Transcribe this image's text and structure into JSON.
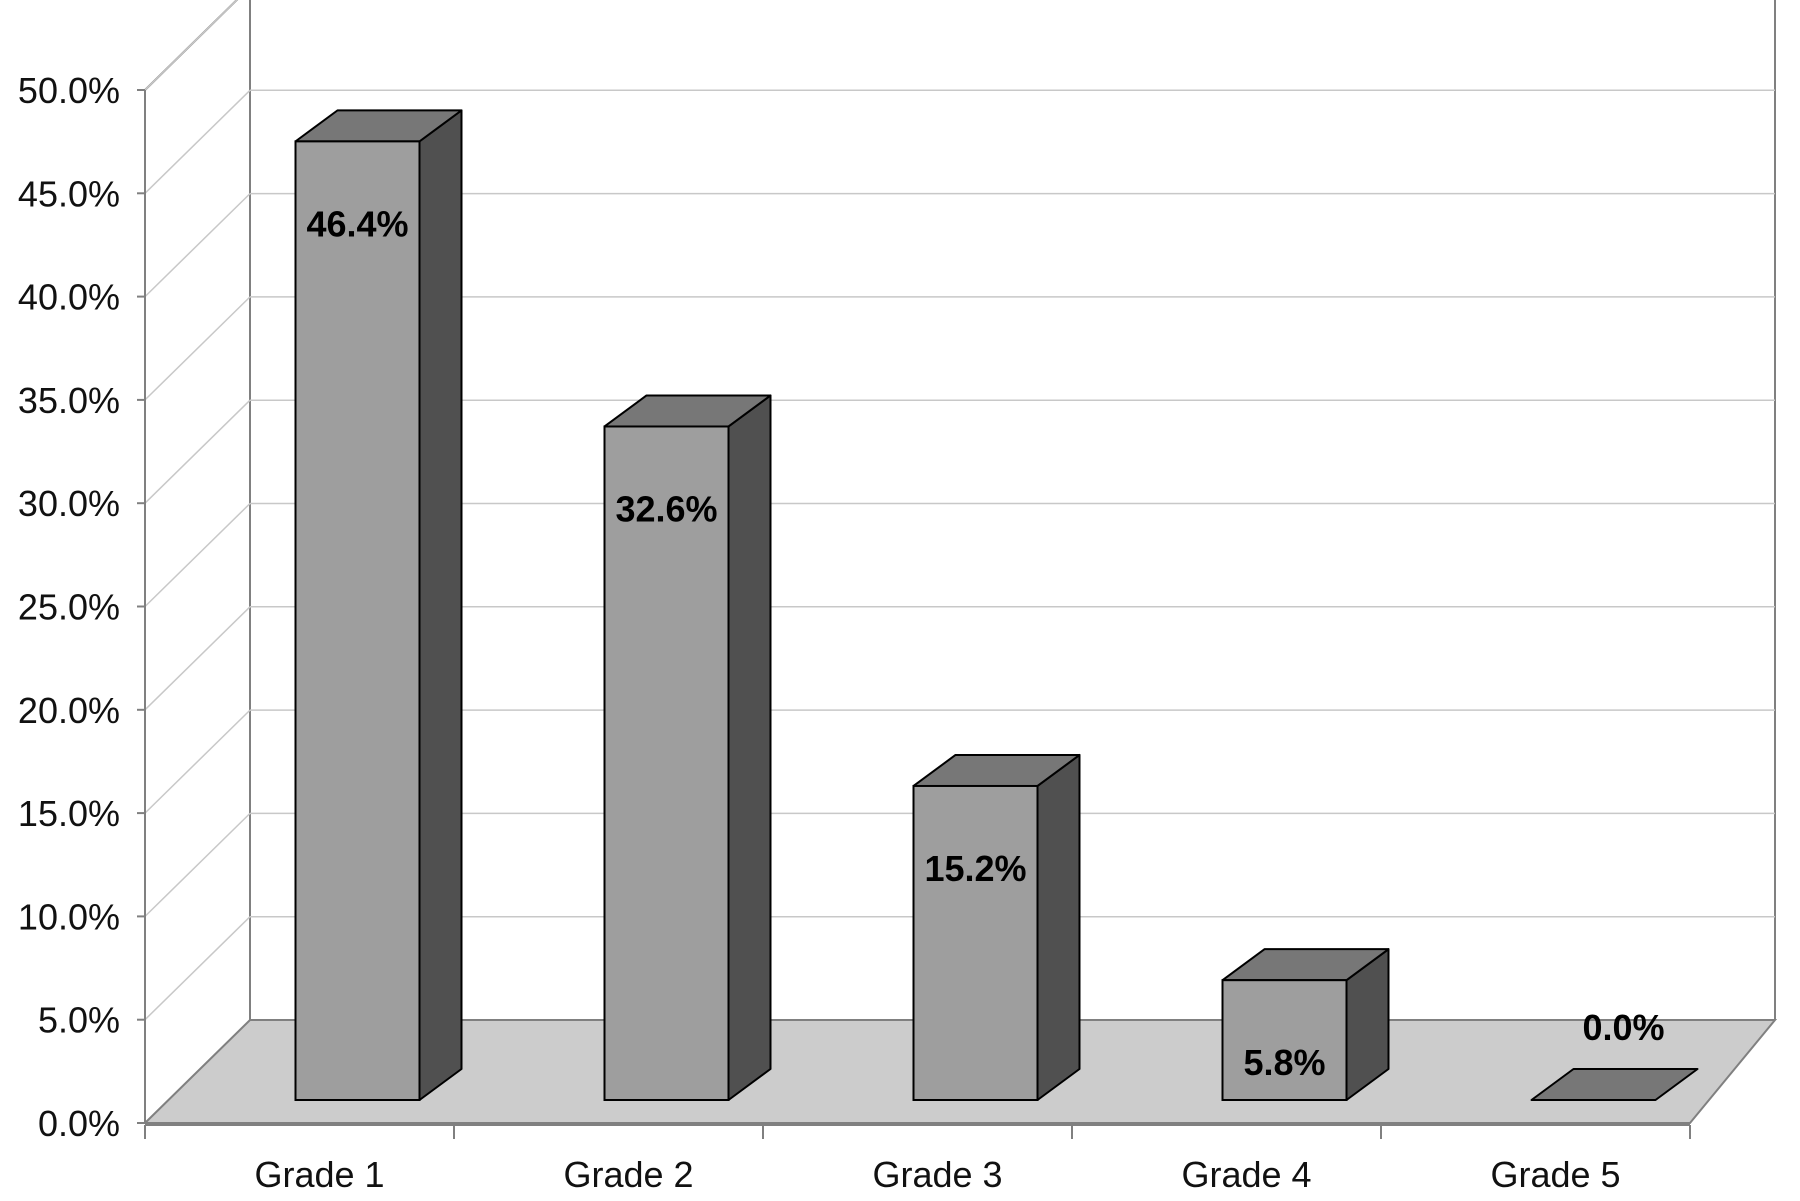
{
  "chart_data": {
    "type": "bar",
    "categories": [
      "Grade 1",
      "Grade 2",
      "Grade 3",
      "Grade 4",
      "Grade 5"
    ],
    "values": [
      46.4,
      32.6,
      15.2,
      5.8,
      0.0
    ],
    "data_labels": [
      "46.4%",
      "32.6%",
      "15.2%",
      "5.8%",
      "0.0%"
    ],
    "y_ticks": [
      "0.0%",
      "5.0%",
      "10.0%",
      "15.0%",
      "20.0%",
      "25.0%",
      "30.0%",
      "35.0%",
      "40.0%",
      "45.0%",
      "50.0%"
    ],
    "ylim": [
      0,
      50
    ],
    "style": "3d",
    "grid": true,
    "legend": "none",
    "colors": {
      "bar_front": "#9e9e9e",
      "bar_top": "#777777",
      "bar_side": "#505050",
      "floor": "#cccccc",
      "gridline": "#c8c8c8",
      "axis": "#808080"
    }
  }
}
